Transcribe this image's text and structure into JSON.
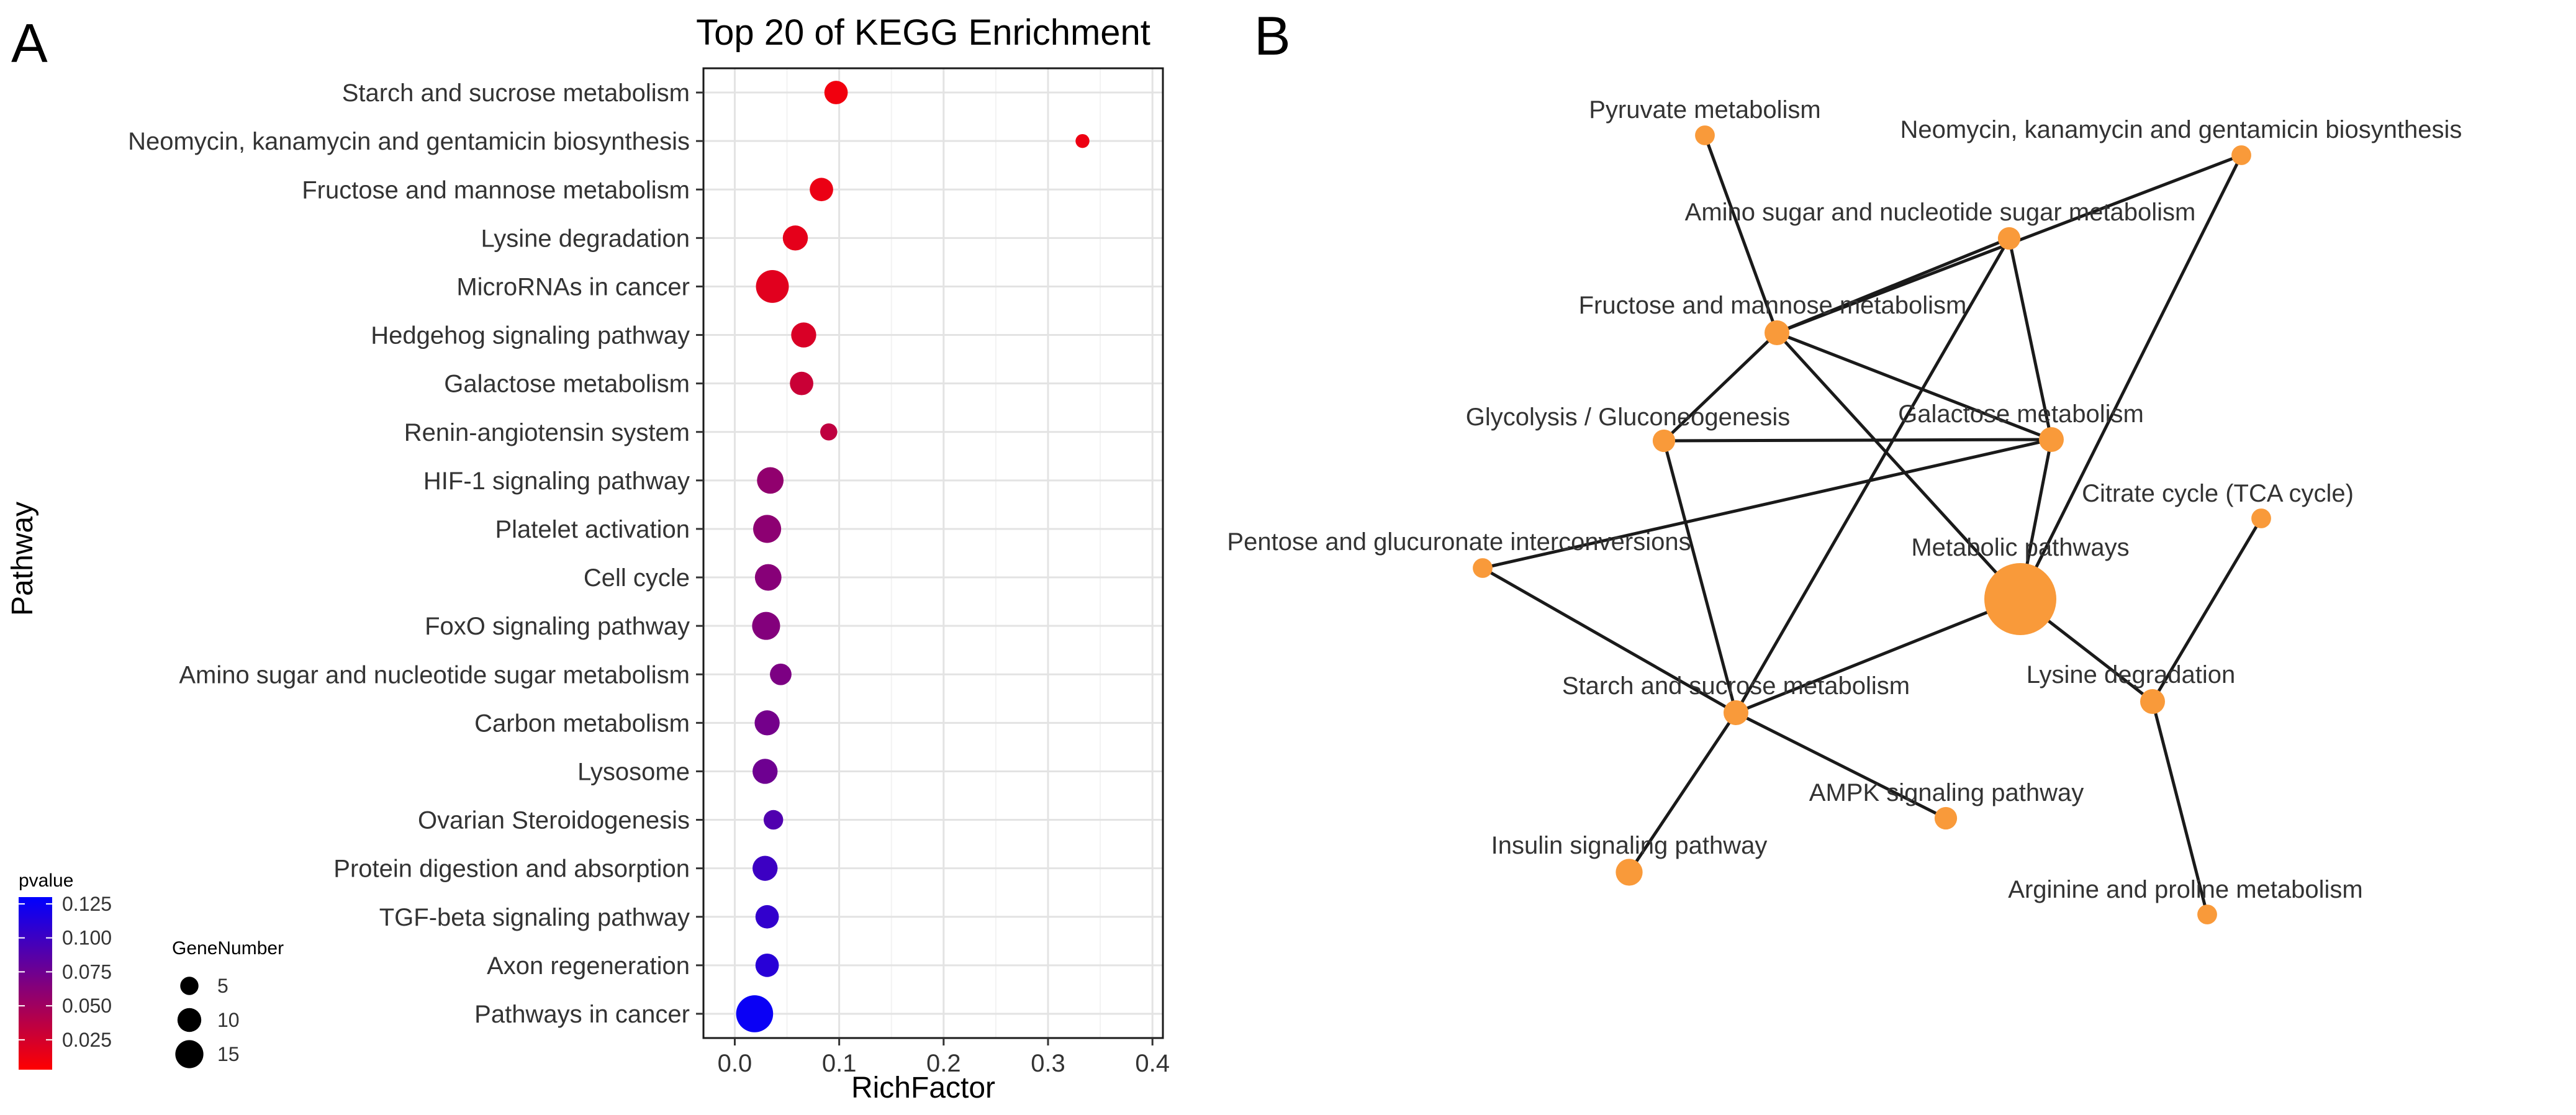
{
  "chart_data": [
    {
      "type": "scatter",
      "panel": "A",
      "title": "Top 20 of KEGG Enrichment",
      "xlabel": "RichFactor",
      "ylabel": "Pathway",
      "xlim": [
        -0.03,
        0.41
      ],
      "xticks": [
        0.0,
        0.1,
        0.2,
        0.3,
        0.4
      ],
      "xtick_labels": [
        "0.0",
        "0.1",
        "0.2",
        "0.3",
        "0.4"
      ],
      "grid": true,
      "points": [
        {
          "pathway": "Starch and sucrose metabolism",
          "rich_factor": 0.097,
          "gene_number": 5,
          "pvalue": 0.01
        },
        {
          "pathway": "Neomycin, kanamycin and gentamicin biosynthesis",
          "rich_factor": 0.333,
          "gene_number": 1,
          "pvalue": 0.012
        },
        {
          "pathway": "Fructose and mannose metabolism",
          "rich_factor": 0.083,
          "gene_number": 5,
          "pvalue": 0.013
        },
        {
          "pathway": "Lysine degradation",
          "rich_factor": 0.058,
          "gene_number": 6,
          "pvalue": 0.016
        },
        {
          "pathway": "MicroRNAs in cancer",
          "rich_factor": 0.036,
          "gene_number": 12,
          "pvalue": 0.018
        },
        {
          "pathway": "Hedgehog signaling pathway",
          "rich_factor": 0.066,
          "gene_number": 6,
          "pvalue": 0.022
        },
        {
          "pathway": "Galactose metabolism",
          "rich_factor": 0.064,
          "gene_number": 5,
          "pvalue": 0.03
        },
        {
          "pathway": "Renin-angiotensin system",
          "rich_factor": 0.09,
          "gene_number": 2,
          "pvalue": 0.035
        },
        {
          "pathway": "HIF-1 signaling pathway",
          "rich_factor": 0.034,
          "gene_number": 7,
          "pvalue": 0.058
        },
        {
          "pathway": "Platelet activation",
          "rich_factor": 0.031,
          "gene_number": 8,
          "pvalue": 0.06
        },
        {
          "pathway": "Cell cycle",
          "rich_factor": 0.032,
          "gene_number": 7,
          "pvalue": 0.063
        },
        {
          "pathway": "FoxO signaling pathway",
          "rich_factor": 0.03,
          "gene_number": 8,
          "pvalue": 0.065
        },
        {
          "pathway": "Amino sugar and nucleotide sugar metabolism",
          "rich_factor": 0.044,
          "gene_number": 4,
          "pvalue": 0.068
        },
        {
          "pathway": "Carbon metabolism",
          "rich_factor": 0.031,
          "gene_number": 6,
          "pvalue": 0.072
        },
        {
          "pathway": "Lysosome",
          "rich_factor": 0.029,
          "gene_number": 6,
          "pvalue": 0.075
        },
        {
          "pathway": "Ovarian Steroidogenesis",
          "rich_factor": 0.037,
          "gene_number": 3,
          "pvalue": 0.09
        },
        {
          "pathway": "Protein digestion and absorption",
          "rich_factor": 0.029,
          "gene_number": 6,
          "pvalue": 0.1
        },
        {
          "pathway": "TGF-beta signaling pathway",
          "rich_factor": 0.031,
          "gene_number": 5,
          "pvalue": 0.105
        },
        {
          "pathway": "Axon regeneration",
          "rich_factor": 0.031,
          "gene_number": 5,
          "pvalue": 0.11
        },
        {
          "pathway": "Pathways in cancer",
          "rich_factor": 0.019,
          "gene_number": 16,
          "pvalue": 0.125
        }
      ],
      "legend": {
        "pvalue": {
          "title": "pvalue",
          "ticks": [
            "0.125",
            "0.100",
            "0.075",
            "0.050",
            "0.025"
          ],
          "range": [
            0.003,
            0.13
          ],
          "low_color": "#ff0000",
          "high_color": "#0000ff"
        },
        "gene_number": {
          "title": "GeneNumber",
          "ticks": [
            "5",
            "10",
            "15"
          ]
        }
      }
    },
    {
      "type": "network",
      "panel": "B",
      "node_color": "#f99a3a",
      "edge_color": "#1a1a1a",
      "nodes": [
        {
          "id": "pyr",
          "label": "Pyruvate metabolism",
          "gene_number": 2
        },
        {
          "id": "neo",
          "label": "Neomycin, kanamycin and gentamicin biosynthesis",
          "gene_number": 2
        },
        {
          "id": "amino",
          "label": "Amino sugar and nucleotide sugar metabolism",
          "gene_number": 3
        },
        {
          "id": "fru",
          "label": "Fructose and mannose metabolism",
          "gene_number": 4
        },
        {
          "id": "gly",
          "label": "Glycolysis / Gluconeogenesis",
          "gene_number": 3
        },
        {
          "id": "gal",
          "label": "Galactose metabolism",
          "gene_number": 4
        },
        {
          "id": "cit",
          "label": "Citrate cycle (TCA cycle)",
          "gene_number": 2
        },
        {
          "id": "pen",
          "label": "Pentose and glucuronate interconversions",
          "gene_number": 2
        },
        {
          "id": "met",
          "label": "Metabolic pathways",
          "gene_number": 30
        },
        {
          "id": "sta",
          "label": "Starch and sucrose metabolism",
          "gene_number": 4
        },
        {
          "id": "lys",
          "label": "Lysine degradation",
          "gene_number": 4
        },
        {
          "id": "ampk",
          "label": "AMPK signaling pathway",
          "gene_number": 3
        },
        {
          "id": "ins",
          "label": "Insulin signaling pathway",
          "gene_number": 5
        },
        {
          "id": "arg",
          "label": "Arginine and proline metabolism",
          "gene_number": 2
        }
      ],
      "edges": [
        [
          "pyr",
          "fru"
        ],
        [
          "neo",
          "fru"
        ],
        [
          "neo",
          "met"
        ],
        [
          "amino",
          "fru"
        ],
        [
          "amino",
          "gal"
        ],
        [
          "amino",
          "sta"
        ],
        [
          "fru",
          "gly"
        ],
        [
          "fru",
          "gal"
        ],
        [
          "fru",
          "met"
        ],
        [
          "gly",
          "gal"
        ],
        [
          "gly",
          "sta"
        ],
        [
          "gal",
          "pen"
        ],
        [
          "gal",
          "met"
        ],
        [
          "pen",
          "sta"
        ],
        [
          "sta",
          "met"
        ],
        [
          "sta",
          "ampk"
        ],
        [
          "sta",
          "ins"
        ],
        [
          "met",
          "lys"
        ],
        [
          "lys",
          "cit"
        ],
        [
          "lys",
          "arg"
        ]
      ]
    }
  ]
}
